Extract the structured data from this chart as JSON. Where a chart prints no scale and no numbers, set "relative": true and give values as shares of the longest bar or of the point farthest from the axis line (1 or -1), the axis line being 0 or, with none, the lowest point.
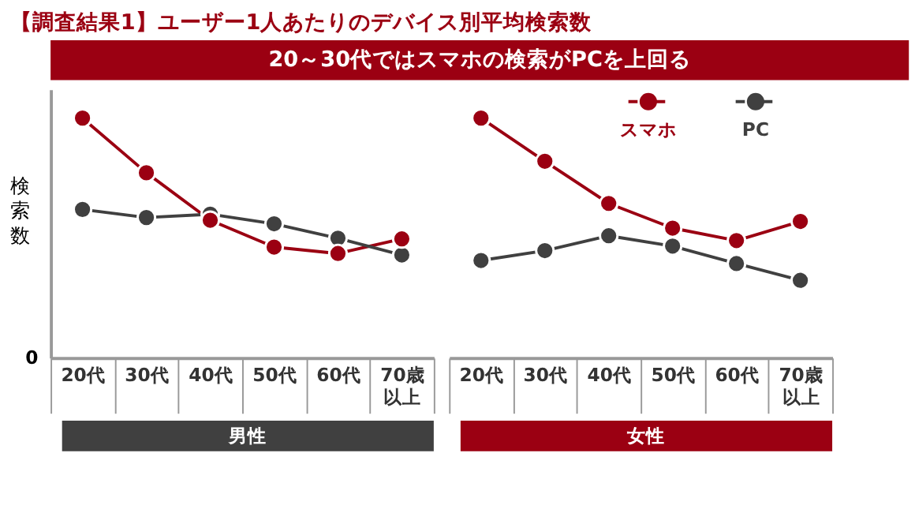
{
  "chart_data": [
    {
      "type": "line",
      "title": "【調査結果1】ユーザー1人あたりのデバイス別平均検索数",
      "subtitle": "20～30代ではスマホの検索がPCを上回る",
      "ylabel": "検索数",
      "xlabel": "男性",
      "annotations": [
        "0"
      ],
      "relative": true,
      "tick_labels": "x",
      "marker": "circle",
      "legend": false,
      "categories": [
        "20代",
        "30代",
        "40代",
        "50代",
        "60代",
        "70歳以上"
      ],
      "series": [
        {
          "color": "#9b0012",
          "values": [
            1.0,
            0.772,
            0.574,
            0.462,
            0.435,
            0.496
          ]
        },
        {
          "color": "#404040",
          "values": [
            0.619,
            0.585,
            0.599,
            0.559,
            0.499,
            0.429
          ]
        }
      ]
    },
    {
      "type": "line",
      "xlabel": "女性",
      "relative": true,
      "tick_labels": "x",
      "marker": "circle",
      "legend": "top right",
      "categories": [
        "20代",
        "30代",
        "40代",
        "50代",
        "60代",
        "70歳以上"
      ],
      "series": [
        {
          "name": "スマホ",
          "color": "#9b0012",
          "values": [
            1.0,
            0.82,
            0.644,
            0.541,
            0.489,
            0.569
          ]
        },
        {
          "name": "PC",
          "color": "#404040",
          "values": [
            0.406,
            0.447,
            0.509,
            0.466,
            0.393,
            0.323
          ]
        }
      ]
    }
  ]
}
